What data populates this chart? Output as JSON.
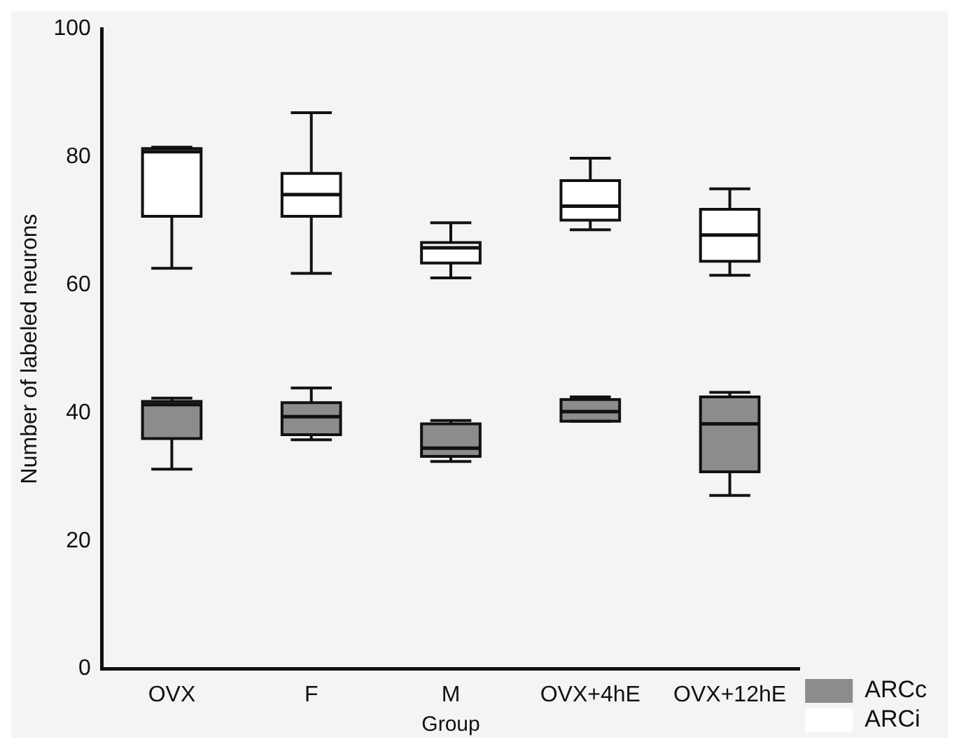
{
  "chart_data": {
    "type": "box",
    "xlabel": "Group",
    "ylabel": "Number of labeled neurons",
    "categories": [
      "OVX",
      "F",
      "M",
      "OVX+4hE",
      "OVX+12hE"
    ],
    "ylim": [
      0,
      100
    ],
    "yticks": [
      0,
      20,
      40,
      60,
      80,
      100
    ],
    "grid": false,
    "legend": "bottom right",
    "series": [
      {
        "name": "ARCc",
        "color": "#8c8c8c",
        "boxes": [
          {
            "low": 31.2,
            "q1": 36,
            "median": 41.3,
            "q3": 41.8,
            "high": 42.3
          },
          {
            "low": 35.8,
            "q1": 36.6,
            "median": 39.4,
            "q3": 41.6,
            "high": 43.9
          },
          {
            "low": 32.4,
            "q1": 33.2,
            "median": 34.5,
            "q3": 38.3,
            "high": 38.8
          },
          {
            "low": 38.7,
            "q1": 38.7,
            "median": 40.2,
            "q3": 42.1,
            "high": 42.5
          },
          {
            "low": 27.1,
            "q1": 30.8,
            "median": 38.3,
            "q3": 42.5,
            "high": 43.2
          }
        ]
      },
      {
        "name": "ARCi",
        "color": "#ffffff",
        "boxes": [
          {
            "low": 62.6,
            "q1": 70.7,
            "median": 80.8,
            "q3": 81.3,
            "high": 81.5
          },
          {
            "low": 61.8,
            "q1": 70.7,
            "median": 74.1,
            "q3": 77.4,
            "high": 86.9
          },
          {
            "low": 61.1,
            "q1": 63.4,
            "median": 65.8,
            "q3": 66.6,
            "high": 69.7
          },
          {
            "low": 68.6,
            "q1": 70.1,
            "median": 72.3,
            "q3": 76.3,
            "high": 79.8
          },
          {
            "low": 61.5,
            "q1": 63.7,
            "median": 67.8,
            "q3": 71.8,
            "high": 75
          }
        ]
      }
    ]
  }
}
